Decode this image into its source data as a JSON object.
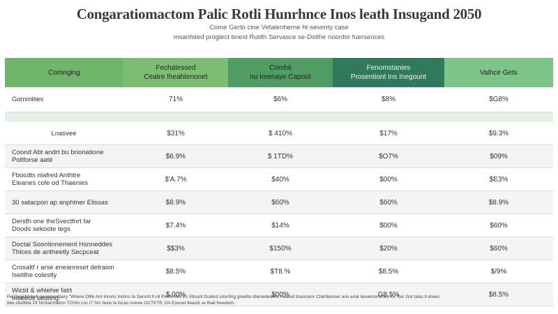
{
  "title": "Congaratiomactom Palic Rotli Hunrhnce Inos leath Insugand 2050",
  "subtitle_line1": "Come Gerto cine Vetalenherne ht-seventy case",
  "subtitle_line2": "msanfsted proglect bnest Rutith Servasce se-Dstlhe noonfor fuersences",
  "table": {
    "headers": [
      "Comnging",
      "Fechatessed\nCeatre Iheahtenonet",
      "Comhit\nnu Imenaye Capout",
      "Fenomstanies\nProsentiont Ins Inegount",
      "Valhce Gets"
    ],
    "rows": [
      {
        "label": "Gommities",
        "cells": [
          "71%",
          "$6%",
          "$8%",
          "$G8%"
        ],
        "style": "tall"
      },
      {
        "label": "",
        "cells": [
          "",
          "",
          "",
          ""
        ],
        "style": "band"
      },
      {
        "label": "Lnasvee",
        "cells": [
          "$31%",
          "$ 410%",
          "$17%",
          "$9.3%"
        ],
        "style": "norm",
        "center": true
      },
      {
        "label": "Coond Abt andrt bu brionatione\nPoltforse aaté",
        "cells": [
          "$6.9%",
          "$ 1TD%",
          "$O7%",
          "$09%"
        ],
        "style": "norm"
      },
      {
        "label": "Fbocdts nlafred Anthtre\nEleanes cole od Thaenies",
        "cells": [
          "$'A.7%",
          "$40%",
          "$00%",
          "$E3%"
        ],
        "style": "norm"
      },
      {
        "label": "30 satacpon ap anphtner Elissas",
        "cells": [
          "$8.9%",
          "$60%",
          "$60%",
          "$8.9%"
        ],
        "style": "norm"
      },
      {
        "label": "Dendh one theSvectfnrt far\nDoods sekoote tegs",
        "cells": [
          "$7.4%",
          "$14%",
          "$00%",
          "$60%"
        ],
        "style": "norm"
      },
      {
        "label": "Doctal Soontinnement Hsnneddes\nThlces de antheetly Secpceat",
        "cells": [
          "$$3%",
          "$150%",
          "$20%",
          "$60%"
        ],
        "style": "norm"
      },
      {
        "label": "Crosaltf r arse eneanreset detraion\nIseitlhe colestly",
        "cells": [
          "$8.5%",
          "$T8.%",
          "$8.5%",
          "$/9%"
        ],
        "style": "norm"
      },
      {
        "label": "Wictd & whlehie falrt\nInseeds seuring",
        "cells": [
          "$.00%",
          "$00%",
          "G8.5%",
          "$8.5%"
        ],
        "style": "norm"
      }
    ]
  },
  "footer_line1": "Pe Qeanhit nelt seencienfpary \"Where Ollfe Am Inrons Inclins ta Sarsml fi nil Pirdorned Vs Vitount Dodest iuturting greelta obesedeaties neared trauscenr Ctambesser ans eoal lasvemonches for Nur Got tasis ti drees",
  "footer_line2": "lbte sfedttite Of Nchiarmation TCHto coc l7 Sm faols la focas meree OCTKTR 1fA Eoocet tleactir ar thall frewdioh."
}
